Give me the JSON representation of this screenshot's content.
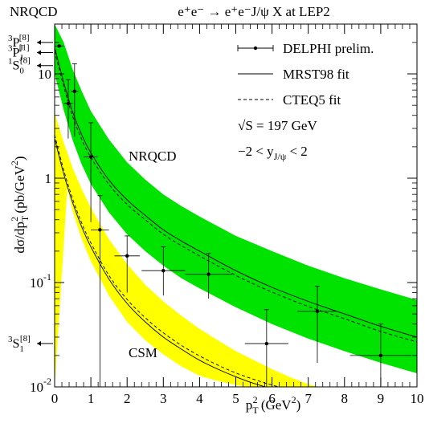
{
  "chart_data": {
    "type": "scatter",
    "title": "e⁺e⁻ → e⁺e⁻J/ψ X at LEP2",
    "corner_label": "NRQCD",
    "xlabel": "p_T^2 (GeV^2)",
    "ylabel": "dσ/dp_T^2 (pb/GeV^2)",
    "xscale": "linear",
    "yscale": "log",
    "xlim": [
      0,
      10
    ],
    "ylim": [
      0.01,
      30
    ],
    "x_ticks": [
      0,
      1,
      2,
      3,
      4,
      5,
      6,
      7,
      8,
      9,
      10
    ],
    "y_ticks": [
      {
        "value": 0.01,
        "label": "10",
        "exp": "-2"
      },
      {
        "value": 0.1,
        "label": "10",
        "exp": "-1"
      },
      {
        "value": 1,
        "label": "1",
        "exp": ""
      },
      {
        "value": 10,
        "label": "10",
        "exp": ""
      }
    ],
    "legend": {
      "position": "top-right",
      "entries": [
        {
          "label": "DELPHI prelim.",
          "style": "points"
        },
        {
          "label": "MRST98 fit",
          "style": "solid"
        },
        {
          "label": "CTEQ5 fit",
          "style": "dashed"
        }
      ],
      "notes": [
        "√S = 197 GeV",
        "−2 < y_J/ψ < 2"
      ]
    },
    "band_labels": [
      "NRQCD",
      "CSM"
    ],
    "series": [
      {
        "name": "DELPHI prelim.",
        "style": "points",
        "points": [
          {
            "x": 0.125,
            "y": 18.5,
            "xerr": 0.125,
            "ylo": 18.5,
            "yhi": 18.5
          },
          {
            "x": 0.375,
            "y": 5.2,
            "xerr": 0.125,
            "ylo": 2.4,
            "yhi": 8.8
          },
          {
            "x": 0.55,
            "y": 6.8,
            "xerr": 0.1,
            "ylo": 2.5,
            "yhi": 12.5
          },
          {
            "x": 1.0,
            "y": 1.6,
            "xerr": 0.2,
            "ylo": 0.38,
            "yhi": 3.4
          },
          {
            "x": 1.25,
            "y": 0.32,
            "xerr": 0.25,
            "ylo": 0.01,
            "yhi": 0.68
          },
          {
            "x": 2.0,
            "y": 0.18,
            "xerr": 0.35,
            "ylo": 0.08,
            "yhi": 0.28
          },
          {
            "x": 3.0,
            "y": 0.13,
            "xerr": 0.6,
            "ylo": 0.075,
            "yhi": 0.22
          },
          {
            "x": 4.25,
            "y": 0.12,
            "xerr": 0.65,
            "ylo": 0.07,
            "yhi": 0.19
          },
          {
            "x": 5.85,
            "y": 0.026,
            "xerr": 0.6,
            "ylo": 0.01,
            "yhi": 0.055
          },
          {
            "x": 7.25,
            "y": 0.053,
            "xerr": 0.55,
            "ylo": 0.017,
            "yhi": 0.092
          },
          {
            "x": 9.0,
            "y": 0.02,
            "xerr": 0.85,
            "ylo": 0.01,
            "yhi": 0.04
          }
        ]
      },
      {
        "name": "MRST98 fit",
        "style": "solid",
        "x": [
          0,
          0.25,
          0.5,
          0.75,
          1,
          1.5,
          2,
          2.5,
          3,
          3.5,
          4,
          5,
          6,
          7,
          8,
          9,
          10
        ],
        "y": [
          18,
          8.3,
          4.3,
          2.6,
          1.75,
          0.96,
          0.62,
          0.44,
          0.32,
          0.25,
          0.2,
          0.13,
          0.09,
          0.066,
          0.05,
          0.038,
          0.03
        ]
      },
      {
        "name": "CTEQ5 fit",
        "style": "dashed",
        "x": [
          0,
          0.25,
          0.5,
          0.75,
          1,
          1.5,
          2,
          2.5,
          3,
          3.5,
          4,
          5,
          6,
          7,
          8,
          9,
          10
        ],
        "y": [
          16.5,
          7.6,
          3.9,
          2.35,
          1.58,
          0.87,
          0.56,
          0.4,
          0.29,
          0.226,
          0.18,
          0.117,
          0.081,
          0.059,
          0.045,
          0.034,
          0.027
        ]
      },
      {
        "name": "NRQCD upper",
        "style": "band-upper",
        "x": [
          0,
          0.25,
          0.5,
          0.75,
          1,
          1.5,
          2,
          2.5,
          3,
          3.5,
          4,
          5,
          6,
          7,
          8,
          9,
          10
        ],
        "y": [
          30,
          20,
          11,
          6.8,
          4.4,
          2.35,
          1.42,
          0.97,
          0.7,
          0.54,
          0.43,
          0.28,
          0.2,
          0.145,
          0.11,
          0.086,
          0.068
        ]
      },
      {
        "name": "NRQCD lower",
        "style": "band-lower",
        "x": [
          0,
          0.25,
          0.5,
          0.75,
          1,
          1.5,
          2,
          2.5,
          3,
          3.5,
          4,
          5,
          6,
          7,
          8,
          9,
          10
        ],
        "y": [
          10,
          4.5,
          2.3,
          1.35,
          0.88,
          0.47,
          0.29,
          0.2,
          0.145,
          0.11,
          0.088,
          0.058,
          0.04,
          0.029,
          0.022,
          0.017,
          0.0135
        ]
      },
      {
        "name": "CSM upper",
        "style": "band-upper",
        "x": [
          0,
          0.25,
          0.5,
          0.75,
          1,
          1.5,
          2,
          2.5,
          3,
          3.5,
          4,
          4.5,
          5,
          5.5,
          6,
          6.5,
          7,
          7.5
        ],
        "y": [
          4.2,
          2.2,
          1.25,
          0.78,
          0.52,
          0.26,
          0.15,
          0.095,
          0.066,
          0.048,
          0.036,
          0.028,
          0.022,
          0.018,
          0.0148,
          0.0124,
          0.0106,
          0.0095
        ]
      },
      {
        "name": "CSM lower",
        "style": "band-lower",
        "x": [
          0.35,
          0.5,
          0.75,
          1,
          1.5,
          2,
          2.5,
          3,
          3.5,
          4,
          4.5,
          5,
          5.5
        ],
        "y": [
          0.8,
          0.48,
          0.26,
          0.16,
          0.075,
          0.042,
          0.028,
          0.0205,
          0.0157,
          0.0128,
          0.0114,
          0.0104,
          0.0097
        ]
      },
      {
        "name": "CSM MRST98",
        "style": "solid",
        "x": [
          0,
          0.25,
          0.5,
          0.75,
          1,
          1.5,
          2,
          2.5,
          3,
          3.5,
          4,
          4.5,
          5,
          5.5,
          6,
          6.5
        ],
        "y": [
          2.4,
          1.1,
          0.58,
          0.34,
          0.22,
          0.108,
          0.063,
          0.042,
          0.03,
          0.023,
          0.018,
          0.0148,
          0.0125,
          0.0108,
          0.0096,
          0.0088
        ]
      },
      {
        "name": "CSM CTEQ5",
        "style": "dashed",
        "x": [
          0,
          0.25,
          0.5,
          0.75,
          1,
          1.5,
          2,
          2.5,
          3,
          3.5,
          4,
          4.5,
          5,
          5.5,
          6,
          6.5
        ],
        "y": [
          2.6,
          1.2,
          0.63,
          0.37,
          0.24,
          0.117,
          0.069,
          0.046,
          0.033,
          0.025,
          0.0198,
          0.0162,
          0.0136,
          0.0118,
          0.0104,
          0.0095
        ]
      }
    ],
    "left_arrows": [
      {
        "label": "P",
        "pre": "3",
        "sub": "J",
        "sup": "[8]",
        "y": 20
      },
      {
        "label": "P",
        "pre": "3",
        "sub": "J",
        "sup": "[1]",
        "y": 16
      },
      {
        "label": "S",
        "pre": "1",
        "sub": "0",
        "sup": "[8]",
        "y": 12
      },
      {
        "label": "S",
        "pre": "3",
        "sub": "1",
        "sup": "[8]",
        "y": 0.026
      }
    ],
    "colors": {
      "nrqcd_band": "#00e300",
      "csm_band": "#ffff00",
      "line": "#000000"
    }
  }
}
